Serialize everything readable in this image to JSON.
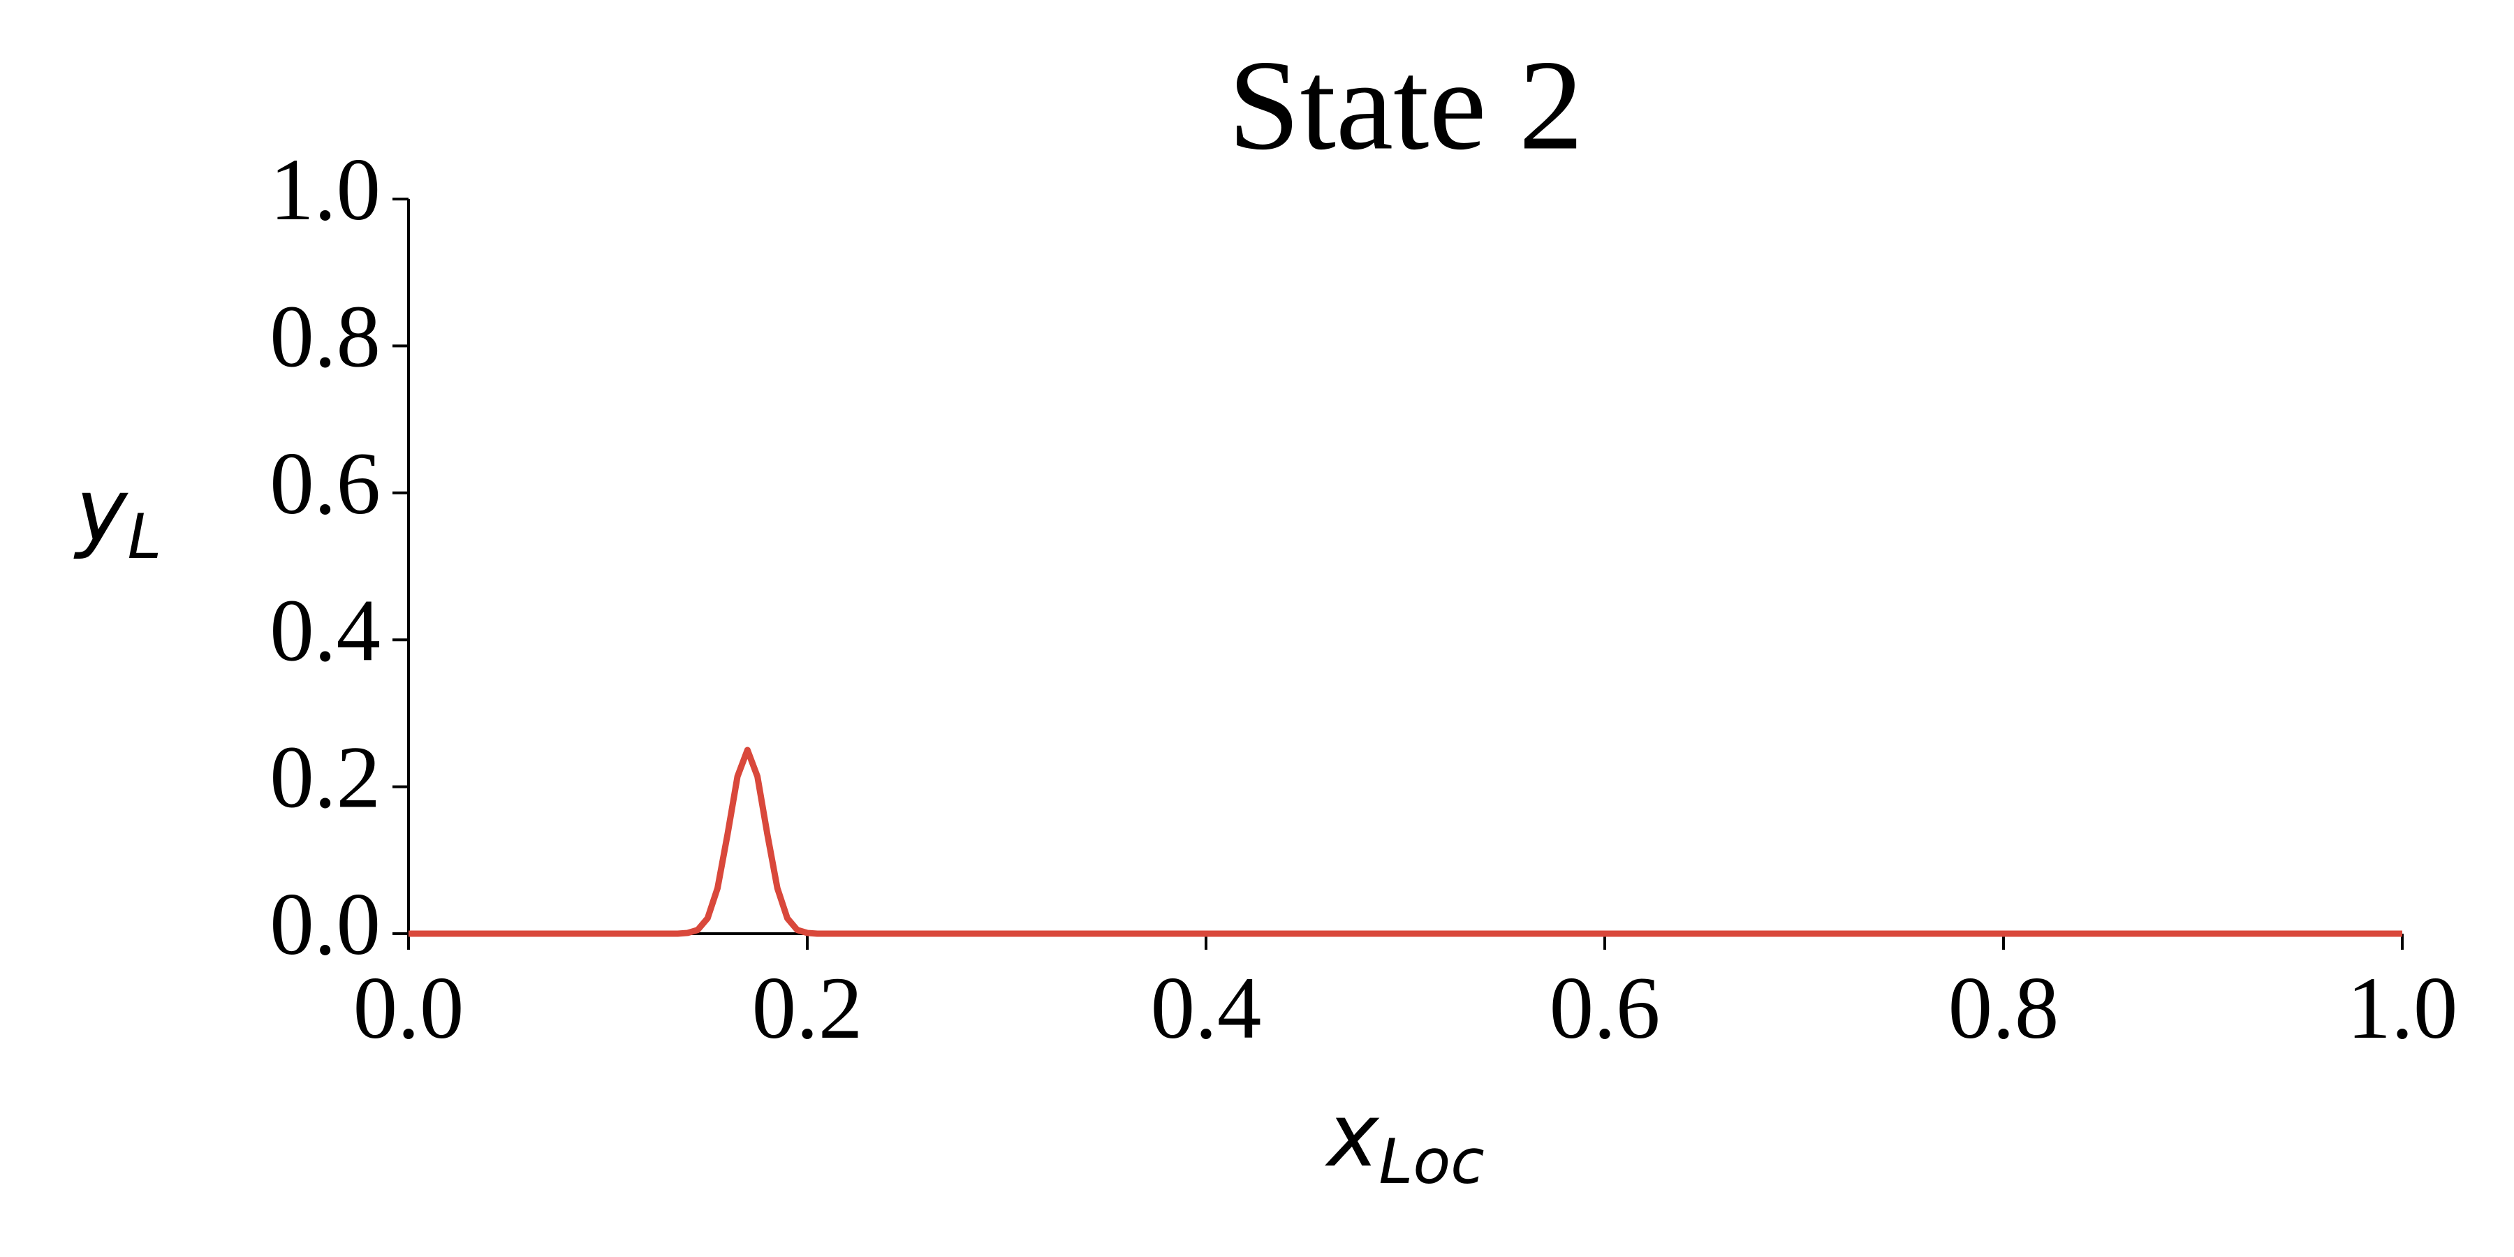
{
  "chart_data": {
    "type": "line",
    "title": "State 2",
    "xlabel": {
      "main": "x",
      "subscript": "Loc"
    },
    "ylabel": {
      "main": "y",
      "subscript": "L"
    },
    "x": [
      0,
      0.13,
      0.135,
      0.14,
      0.145,
      0.15,
      0.155,
      0.16,
      0.165,
      0.17,
      0.175,
      0.18,
      0.185,
      0.19,
      0.195,
      0.2,
      0.205,
      0.21,
      1.0
    ],
    "series": [
      {
        "color": "#d9483b",
        "values": [
          0,
          0,
          0,
          0.001,
          0.005,
          0.021,
          0.062,
          0.135,
          0.214,
          0.25,
          0.214,
          0.135,
          0.062,
          0.021,
          0.005,
          0.001,
          0,
          0,
          0
        ]
      }
    ],
    "xlim": [
      0,
      1
    ],
    "ylim": [
      0,
      1
    ],
    "xticks": [
      {
        "value": 0,
        "label": "0.0"
      },
      0.2,
      0.4,
      0.6,
      0.8,
      {
        "value": 1,
        "label": "1.0"
      }
    ],
    "yticks": [
      {
        "value": 0,
        "label": "0.0"
      },
      0.2,
      0.4,
      0.6,
      0.8,
      {
        "value": 1,
        "label": "1.0"
      }
    ],
    "grid": false
  }
}
